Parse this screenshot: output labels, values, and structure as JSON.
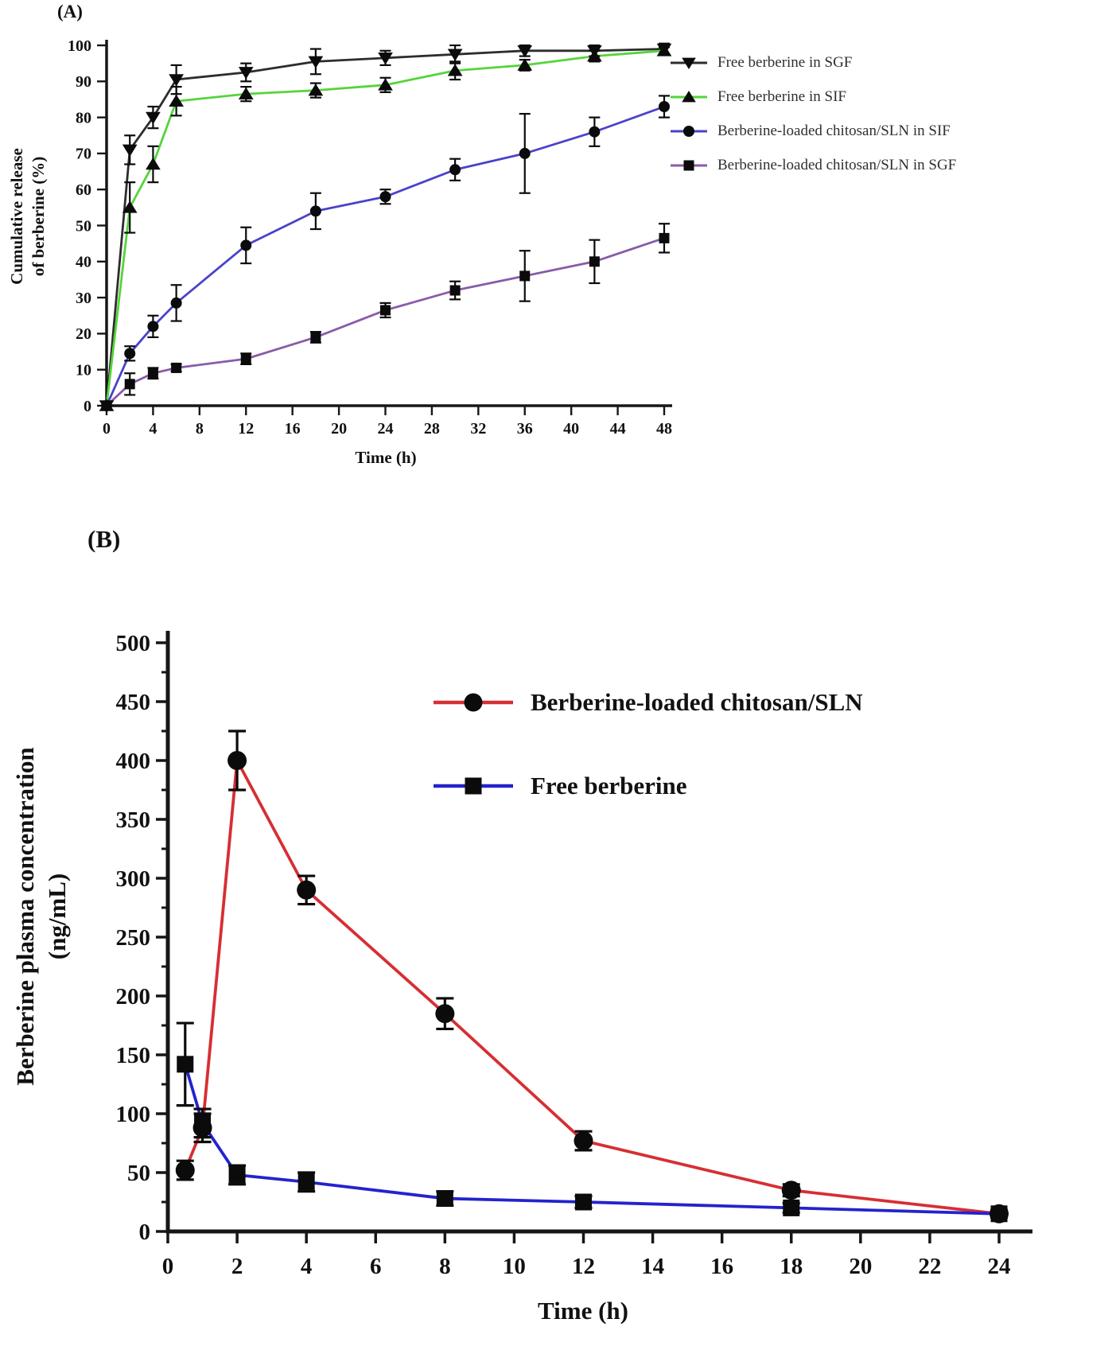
{
  "figure": {
    "background": "#ffffff",
    "text_color": "#111111",
    "axis_color": "#161616",
    "marker_color": "#0b0b0b"
  },
  "chart_data": [
    {
      "id": "panel-a",
      "type": "line",
      "panel_label": "(A)",
      "xlabel": "Time (h)",
      "ylabel_lines": [
        "Cumulative release",
        "of berberine (%)"
      ],
      "ylabel": "Cumulative release of berberine (%)",
      "xlim": [
        0,
        48
      ],
      "ylim": [
        0,
        100
      ],
      "xticks": [
        0,
        4,
        8,
        12,
        16,
        20,
        24,
        28,
        32,
        36,
        40,
        44,
        48
      ],
      "yticks": [
        0,
        10,
        20,
        30,
        40,
        50,
        60,
        70,
        80,
        90,
        100
      ],
      "grid": false,
      "legend_position": "right-outside",
      "x": [
        0,
        2,
        4,
        6,
        12,
        18,
        24,
        30,
        36,
        42,
        48
      ],
      "series": [
        {
          "name": "Free berberine in SGF",
          "line_color": "#2d2d2d",
          "marker": "triangle-down",
          "values": [
            0,
            71,
            80,
            90.5,
            92.5,
            95.5,
            96.5,
            97.5,
            98.5,
            98.5,
            99
          ],
          "errors": [
            0,
            4,
            3,
            4,
            2.5,
            3.5,
            2,
            2.5,
            1.5,
            1.5,
            1.5
          ]
        },
        {
          "name": "Free berberine in SIF",
          "line_color": "#55d43c",
          "marker": "triangle-up",
          "values": [
            0,
            55,
            67,
            84.5,
            86.5,
            87.5,
            89,
            93,
            94.5,
            97,
            98.5
          ],
          "errors": [
            0,
            7,
            5,
            4,
            2,
            2,
            2,
            2.5,
            1.5,
            1.5,
            1
          ]
        },
        {
          "name": "Berberine-loaded chitosan/SLN in SIF",
          "line_color": "#4a43c8",
          "marker": "circle",
          "values": [
            0,
            14.5,
            22,
            28.5,
            44.5,
            54,
            58,
            65.5,
            70,
            76,
            83
          ],
          "errors": [
            0,
            2,
            3,
            5,
            5,
            5,
            2,
            3,
            11,
            4,
            3
          ]
        },
        {
          "name": "Berberine-loaded chitosan/SLN in SGF",
          "line_color": "#8a5ba8",
          "marker": "square",
          "values": [
            0,
            6,
            9,
            10.5,
            13,
            19,
            26.5,
            32,
            36,
            40,
            46.5
          ],
          "errors": [
            0,
            3,
            1.5,
            1,
            1.5,
            1.5,
            2,
            2.5,
            7,
            6,
            4
          ]
        }
      ]
    },
    {
      "id": "panel-b",
      "type": "line",
      "panel_label": "(B)",
      "xlabel": "Time (h)",
      "ylabel_lines": [
        "Berberine plasma concentration",
        "(ng/mL)"
      ],
      "ylabel": "Berberine plasma concentration (ng/mL)",
      "xlim": [
        0,
        24
      ],
      "ylim": [
        0,
        500
      ],
      "xticks": [
        0,
        2,
        4,
        6,
        8,
        10,
        12,
        14,
        16,
        18,
        20,
        22,
        24
      ],
      "yticks": [
        0,
        50,
        100,
        150,
        200,
        250,
        300,
        350,
        400,
        450,
        500
      ],
      "yticks_minor": [
        25,
        75,
        125,
        175,
        225,
        275,
        325,
        375,
        425,
        475
      ],
      "grid": false,
      "legend_position": "upper-right-inside",
      "x": [
        0.5,
        1,
        2,
        4,
        8,
        12,
        18,
        24
      ],
      "series": [
        {
          "name": "Berberine-loaded chitosan/SLN",
          "line_color": "#d62f34",
          "marker": "circle",
          "values": [
            52,
            88,
            400,
            290,
            185,
            77,
            35,
            15
          ],
          "errors": [
            8,
            12,
            25,
            12,
            13,
            8,
            5,
            3
          ]
        },
        {
          "name": "Free berberine",
          "line_color": "#2323cd",
          "marker": "square",
          "values": [
            142,
            92,
            48,
            42,
            28,
            25,
            20,
            15
          ],
          "errors": [
            35,
            12,
            8,
            8,
            6,
            5,
            4,
            3
          ]
        }
      ]
    }
  ]
}
